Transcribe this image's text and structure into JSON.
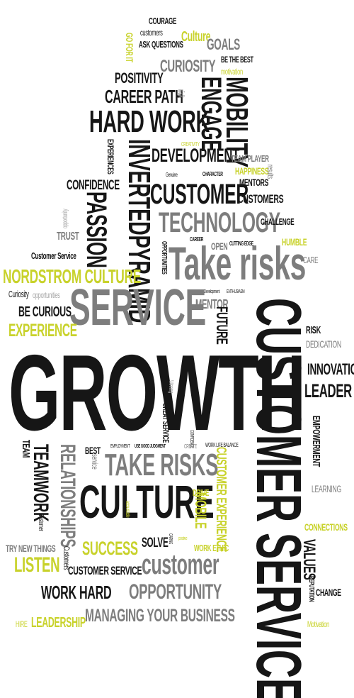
{
  "words": {
    "courage": "COURAGE",
    "customers_s": "customers",
    "go_for_it": "GO FOR IT",
    "ask_questions": "ASK QUESTIONS",
    "culture_y": "Culture",
    "goals": "GOALS",
    "be_the_best": "BE THE BEST",
    "curiosity": "CURIOSITY",
    "motivation_s": "motivation",
    "positivity": "POSITIVITY",
    "mobility": "MOBILITY",
    "engage": "ENGAGE",
    "career_path": "CAREER PATH",
    "risk_s": "risk",
    "hard_work": "HARD WORK",
    "creativity": "CREATIVITY",
    "experiences": "EXPERIENCES",
    "inverted_pyramid": "INVERTEDPYRAMID",
    "development": "DEVELOPMENT",
    "team_player": "TEAM PLAYER",
    "happiness": "HAPPINESS",
    "results": "results",
    "genuine": "Genuine",
    "character": "CHARACTER",
    "mentors": "MENTORS",
    "confidence": "CONFIDENCE",
    "customer_big": "CUSTOMER",
    "customers_2": "CUSTOMERS",
    "opportunity_s": "opportunity",
    "passion": "PASSION",
    "technology": "TECHNOLOGY",
    "challenge": "CHALLENGE",
    "trust": "TRUST",
    "career": "CAREER",
    "cutting_edge": "CUTTING EDGE",
    "open": "OPEN",
    "humble": "HUMBLE",
    "take_risks_1": "Take risks",
    "customer_service_s": "Customer Service",
    "opportunities": "OPPORTUNITIES",
    "care": "CARE",
    "nordstrom_culture": "NORDSTROM CULTURE",
    "curiosity_s": "Curiosity",
    "opportunities_s": "opportunities",
    "development_s": "Development",
    "enthusiasm": "ENTHUSIASM",
    "service": "SERVICE",
    "mentor": "MENTOR",
    "be_curious": "BE CURIOUS",
    "future": "FUTURE",
    "customer_service_big": "CUSTOMER SERVICE",
    "experience": "EXPERIENCE",
    "risk": "RISK",
    "dedication": "DEDICATION",
    "growth": "GROWTH",
    "innovation": "INNOVATION",
    "leader": "LEADER",
    "winning": "Winning",
    "great_service": "GREAT SERVICE",
    "empowerment": "EMPOWERMENT",
    "team": "TEAM",
    "employment": "EMPLOYMENT",
    "use_good_judgment": "USE GOOD JUDGMENT",
    "confidence_s": "CONFIDENCE",
    "create": "CREATE",
    "work_life_balance": "WORK LIFE BALANCE",
    "best": "BEST",
    "service_s": "service",
    "take_risks_2": "TAKE RISKS",
    "customer_experience": "CUSTOMER EXPERIENCE",
    "relationships": "RELATIONSHIPS",
    "teamwork": "TEAMWORK",
    "learning": "LEARNING",
    "culture_big": "CULTURE",
    "drive": "DRIVE",
    "mobile": "MOBILE",
    "accountable": "accountable",
    "connections": "CONNECTIONS",
    "customer_v": "Customer",
    "try_new_things": "TRY NEW THINGS",
    "success": "SUCCESS",
    "solve": "SOLVE",
    "caring": "CARING",
    "positive": "positive",
    "work_ethic": "WORK ETHIC",
    "values": "VALUES",
    "listen": "LISTEN",
    "customers_v": "Customers",
    "customer_service_mid": "CUSTOMER SERVICE",
    "customer_lower": "customer",
    "reputation": "REPUTATION",
    "change": "CHANGE",
    "work_hard": "WORK HARD",
    "opportunity": "OPPORTUNITY",
    "managing": "MANAGING YOUR BUSINESS",
    "hire": "HIRE",
    "leadership": "LEADERSHIP",
    "motivation": "Motivation"
  },
  "colors": {
    "black": "#161616",
    "gray": "#7d7d7d",
    "light_gray": "#a9a9a9",
    "yellow": "#c8d22b"
  }
}
